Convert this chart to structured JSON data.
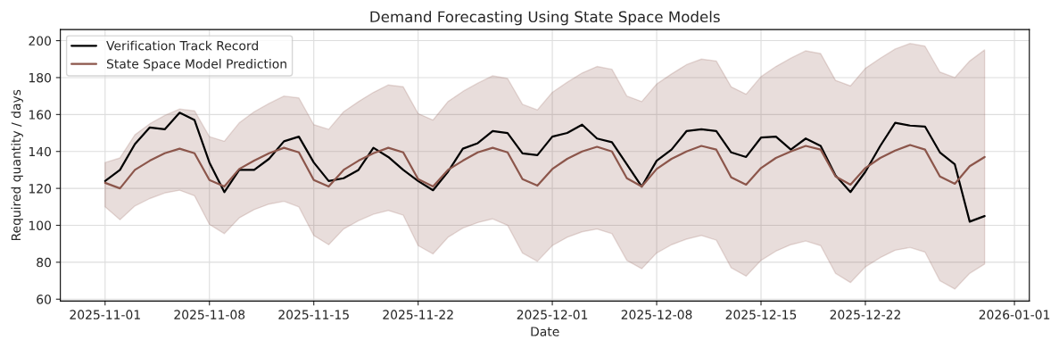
{
  "chart_data": {
    "type": "line",
    "title": "Demand Forecasting Using State Space Models",
    "xlabel": "Date",
    "ylabel": "Required quantity / days",
    "x": [
      "2025-11-01",
      "2025-11-02",
      "2025-11-03",
      "2025-11-04",
      "2025-11-05",
      "2025-11-06",
      "2025-11-07",
      "2025-11-08",
      "2025-11-09",
      "2025-11-10",
      "2025-11-11",
      "2025-11-12",
      "2025-11-13",
      "2025-11-14",
      "2025-11-15",
      "2025-11-16",
      "2025-11-17",
      "2025-11-18",
      "2025-11-19",
      "2025-11-20",
      "2025-11-21",
      "2025-11-22",
      "2025-11-23",
      "2025-11-24",
      "2025-11-25",
      "2025-11-26",
      "2025-11-27",
      "2025-11-28",
      "2025-11-29",
      "2025-11-30",
      "2025-12-01",
      "2025-12-02",
      "2025-12-03",
      "2025-12-04",
      "2025-12-05",
      "2025-12-06",
      "2025-12-07",
      "2025-12-08",
      "2025-12-09",
      "2025-12-10",
      "2025-12-11",
      "2025-12-12",
      "2025-12-13",
      "2025-12-14",
      "2025-12-15",
      "2025-12-16",
      "2025-12-17",
      "2025-12-18",
      "2025-12-19",
      "2025-12-20",
      "2025-12-21",
      "2025-12-22",
      "2025-12-23",
      "2025-12-24",
      "2025-12-25",
      "2025-12-26",
      "2025-12-27",
      "2025-12-28",
      "2025-12-29",
      "2025-12-30"
    ],
    "series": [
      {
        "name": "Verification Track Record",
        "color": "#000000",
        "values": [
          124,
          130,
          144,
          153,
          152,
          161,
          157,
          134,
          118,
          130,
          130,
          136,
          145.5,
          148,
          134,
          124,
          125.5,
          130,
          142,
          137,
          130,
          124,
          119,
          129,
          141.5,
          144.5,
          151,
          150,
          139,
          138,
          148,
          150,
          154.5,
          147,
          145,
          133,
          121,
          135,
          141,
          151,
          152,
          151,
          139.5,
          137,
          147.5,
          148,
          141,
          147,
          143,
          127,
          118,
          129,
          143,
          155.5,
          154,
          153.5,
          139.5,
          133,
          102,
          105
        ]
      },
      {
        "name": "State Space Model Prediction",
        "color": "#8c564b",
        "values": [
          123,
          120,
          130,
          135,
          139,
          141.5,
          139,
          124.5,
          121,
          130.5,
          135,
          139,
          142,
          139.5,
          124.5,
          121,
          130,
          135,
          139,
          142,
          139.5,
          125,
          121,
          130,
          135,
          139.5,
          142,
          139.5,
          125,
          121.5,
          130.5,
          136,
          140,
          142.5,
          140,
          125.5,
          121,
          130.5,
          136,
          140,
          143,
          141,
          126,
          122,
          131,
          136.5,
          140,
          143,
          141,
          126.5,
          122,
          131,
          136.5,
          140.5,
          143.5,
          141,
          126.5,
          122.5,
          132,
          137
        ],
        "upper": [
          134,
          136.5,
          149,
          155,
          159.5,
          163,
          162,
          148,
          145.5,
          155.5,
          161.5,
          166,
          170,
          169,
          154.5,
          152,
          161.5,
          167,
          172,
          176,
          175,
          160.5,
          157,
          167,
          172.5,
          177,
          181,
          179.5,
          165.5,
          162.5,
          172,
          177.5,
          182.5,
          186,
          184.5,
          170,
          167,
          176.5,
          182,
          187,
          190,
          189,
          175,
          171,
          180.5,
          186,
          190.5,
          194.5,
          193,
          178.5,
          175.5,
          185,
          190.5,
          195.5,
          198.5,
          197,
          183,
          180,
          189,
          195
        ],
        "lower": [
          110,
          103,
          110.5,
          114.5,
          117.5,
          119,
          116,
          100.5,
          95.5,
          104,
          108.5,
          111.5,
          113,
          110,
          94.5,
          89.5,
          98,
          102.5,
          106,
          108,
          105.5,
          89,
          84.5,
          93.5,
          98.5,
          101.5,
          103.5,
          100,
          85,
          80.5,
          89,
          93.5,
          96.5,
          98,
          95.5,
          81,
          76.5,
          85,
          89.5,
          92.5,
          94.5,
          92,
          77,
          72.5,
          81,
          86,
          89.5,
          91.5,
          89,
          74,
          69,
          77.5,
          82.5,
          86.5,
          88,
          85.5,
          70,
          65.5,
          74,
          79
        ]
      }
    ],
    "xlim": [
      "2025-10-29",
      "2026-01-02"
    ],
    "xticks": [
      "2025-11-01",
      "2025-11-08",
      "2025-11-15",
      "2025-11-22",
      "2025-12-01",
      "2025-12-08",
      "2025-12-15",
      "2025-12-22",
      "2026-01-01"
    ],
    "ylim": [
      59,
      206
    ],
    "yticks": [
      60,
      80,
      100,
      120,
      140,
      160,
      180,
      200
    ],
    "grid": true,
    "legend": "top left",
    "line_style": "solid",
    "marker": "none"
  }
}
